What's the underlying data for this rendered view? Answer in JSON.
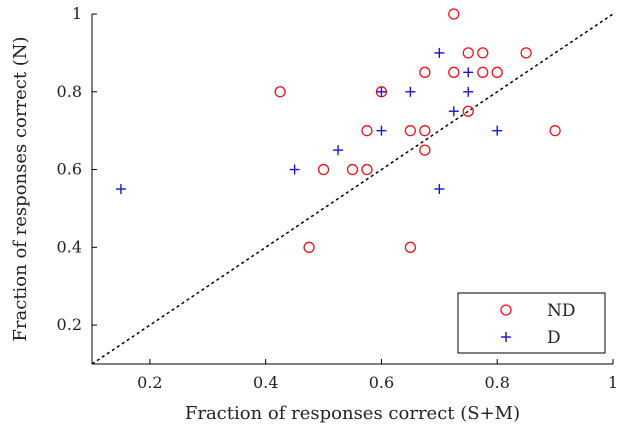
{
  "chart_data": {
    "type": "scatter",
    "title": "",
    "xlabel": "Fraction of responses correct (S+M)",
    "ylabel": "Fraction of responses correct (N)",
    "xlim": [
      0.1,
      1.0
    ],
    "ylim": [
      0.1,
      1.0
    ],
    "xticks": [
      0.2,
      0.4,
      0.6,
      0.8,
      1
    ],
    "xtick_labels": [
      "0.2",
      "0.4",
      "0.6",
      "0.8",
      "1"
    ],
    "yticks": [
      0.2,
      0.4,
      0.6,
      0.8,
      1
    ],
    "ytick_labels": [
      "0.2",
      "0.4",
      "0.6",
      "0.8",
      "1"
    ],
    "grid": false,
    "legend_position": "bottom-right",
    "reference_line": {
      "style": "dotted",
      "from": [
        0.1,
        0.1
      ],
      "to": [
        1.0,
        1.0
      ],
      "color": "#000000"
    },
    "series": [
      {
        "name": "ND",
        "marker": "circle",
        "color": "#e8141b",
        "points": [
          [
            0.725,
            1.0
          ],
          [
            0.75,
            0.9
          ],
          [
            0.775,
            0.9
          ],
          [
            0.85,
            0.9
          ],
          [
            0.675,
            0.85
          ],
          [
            0.725,
            0.85
          ],
          [
            0.775,
            0.85
          ],
          [
            0.8,
            0.85
          ],
          [
            0.425,
            0.8
          ],
          [
            0.6,
            0.8
          ],
          [
            0.75,
            0.75
          ],
          [
            0.575,
            0.7
          ],
          [
            0.65,
            0.7
          ],
          [
            0.675,
            0.7
          ],
          [
            0.9,
            0.7
          ],
          [
            0.675,
            0.65
          ],
          [
            0.5,
            0.6
          ],
          [
            0.55,
            0.6
          ],
          [
            0.575,
            0.6
          ],
          [
            0.475,
            0.4
          ],
          [
            0.65,
            0.4
          ]
        ]
      },
      {
        "name": "D",
        "marker": "plus",
        "color": "#1414e0",
        "points": [
          [
            0.7,
            0.9
          ],
          [
            0.75,
            0.85
          ],
          [
            0.6,
            0.8
          ],
          [
            0.65,
            0.8
          ],
          [
            0.75,
            0.8
          ],
          [
            0.725,
            0.75
          ],
          [
            0.6,
            0.7
          ],
          [
            0.8,
            0.7
          ],
          [
            0.525,
            0.65
          ],
          [
            0.45,
            0.6
          ],
          [
            0.15,
            0.55
          ],
          [
            0.7,
            0.55
          ]
        ]
      }
    ]
  }
}
